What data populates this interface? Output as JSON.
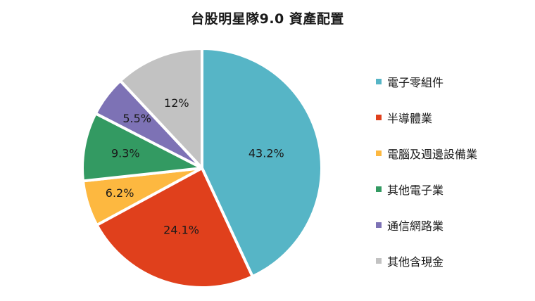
{
  "chart_data": {
    "type": "pie",
    "title": "台股明星隊9.0 資產配置",
    "slices": [
      {
        "label": "電子零組件",
        "value": 43.2,
        "display": "43.2%",
        "color": "#56b5c6"
      },
      {
        "label": "半導體業",
        "value": 24.1,
        "display": "24.1%",
        "color": "#e0401c"
      },
      {
        "label": "電腦及週邊設備業",
        "value": 6.2,
        "display": "6.2%",
        "color": "#fdb840"
      },
      {
        "label": "其他電子業",
        "value": 9.3,
        "display": "9.3%",
        "color": "#339a62"
      },
      {
        "label": "通信網路業",
        "value": 5.5,
        "display": "5.5%",
        "color": "#7d72b5"
      },
      {
        "label": "其他含現金",
        "value": 12,
        "display": "12%",
        "color": "#c2c2c2"
      }
    ],
    "legend_position": "right",
    "start_angle": "12 o'clock",
    "direction": "clockwise"
  }
}
